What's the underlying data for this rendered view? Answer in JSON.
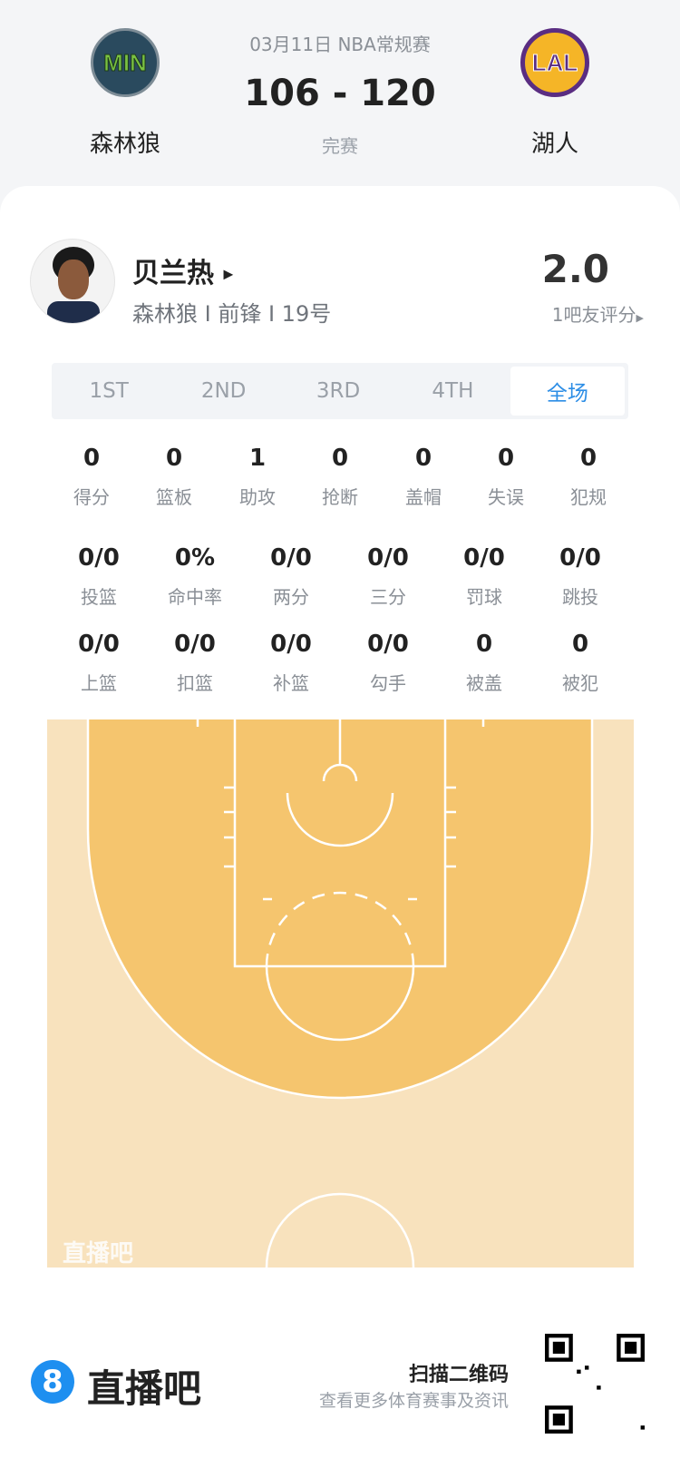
{
  "match": {
    "date_league": "03月11日 NBA常规赛",
    "score": "106 - 120",
    "status": "完赛",
    "home": {
      "name": "森林狼",
      "abbr": "MIN"
    },
    "away": {
      "name": "湖人",
      "abbr": "LAL"
    }
  },
  "player": {
    "name": "贝兰热",
    "info": "森林狼 I 前锋 I 19号",
    "rating": "2.0",
    "rating_label": "1吧友评分"
  },
  "tabs": [
    {
      "label": "1ST"
    },
    {
      "label": "2ND"
    },
    {
      "label": "3RD"
    },
    {
      "label": "4TH"
    },
    {
      "label": "全场",
      "active": true
    }
  ],
  "stats_row1": [
    {
      "v": "0",
      "l": "得分"
    },
    {
      "v": "0",
      "l": "篮板"
    },
    {
      "v": "1",
      "l": "助攻"
    },
    {
      "v": "0",
      "l": "抢断"
    },
    {
      "v": "0",
      "l": "盖帽"
    },
    {
      "v": "0",
      "l": "失误"
    },
    {
      "v": "0",
      "l": "犯规"
    }
  ],
  "stats_row2": [
    {
      "v": "0/0",
      "l": "投篮"
    },
    {
      "v": "0%",
      "l": "命中率"
    },
    {
      "v": "0/0",
      "l": "两分"
    },
    {
      "v": "0/0",
      "l": "三分"
    },
    {
      "v": "0/0",
      "l": "罚球"
    },
    {
      "v": "0/0",
      "l": "跳投"
    }
  ],
  "stats_row3": [
    {
      "v": "0/0",
      "l": "上篮"
    },
    {
      "v": "0/0",
      "l": "扣篮"
    },
    {
      "v": "0/0",
      "l": "补篮"
    },
    {
      "v": "0/0",
      "l": "勾手"
    },
    {
      "v": "0",
      "l": "被盖"
    },
    {
      "v": "0",
      "l": "被犯"
    }
  ],
  "court": {
    "watermark": "直播吧",
    "colors": {
      "outer": "#f8e2bd",
      "inside_arc": "#f5c56e",
      "lines": "#ffffff"
    }
  },
  "footer": {
    "brand_mark": "8",
    "brand": "直播吧",
    "scan": "扫描二维码",
    "scan_sub": "查看更多体育赛事及资讯"
  },
  "colors": {
    "accent": "#2d8ee6",
    "brand": "#1e8ff0"
  }
}
